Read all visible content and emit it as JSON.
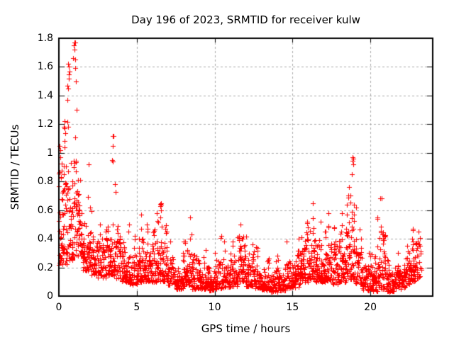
{
  "chart_data": {
    "type": "scatter",
    "title": "Day 196 of 2023, SRMTID for receiver kulw",
    "xlabel": "GPS time / hours",
    "ylabel": "SRMTID / TECUs",
    "xlim": [
      0,
      24
    ],
    "ylim": [
      0,
      1.8
    ],
    "xtick_values": [
      0,
      5,
      10,
      15,
      20
    ],
    "xtick_labels": [
      "0",
      "5",
      "10",
      "15",
      "20"
    ],
    "ytick_values": [
      0,
      0.2,
      0.4,
      0.6,
      0.8,
      1,
      1.2,
      1.4,
      1.6,
      1.8
    ],
    "ytick_labels": [
      "0",
      "0.2",
      "0.4",
      "0.6",
      "0.8",
      "1",
      "1.2",
      "1.4",
      "1.6",
      "1.8"
    ],
    "grid": {
      "style": "dashed",
      "color": "#aaaaaa",
      "on": true
    },
    "marker": {
      "shape": "plus",
      "color": "#ff0000",
      "size": 7
    },
    "axis_color": "#000000",
    "background": "#ffffff",
    "legend": "none",
    "series": [
      {
        "name": "SRMTID",
        "bins_format": [
          "hour_start",
          "y_min",
          "y_typical_max",
          "y_spike_max",
          "n_points",
          "spike_hour"
        ],
        "bins": [
          [
            0.0,
            0.22,
            1.05,
            1.22,
            70,
            0.35
          ],
          [
            0.5,
            0.25,
            1.0,
            1.62,
            65,
            0.62
          ],
          [
            1.0,
            0.28,
            0.95,
            1.77,
            60,
            1.03
          ],
          [
            1.5,
            0.18,
            0.62,
            0.92,
            55,
            1.9
          ],
          [
            2.0,
            0.15,
            0.5,
            0.62,
            50,
            null
          ],
          [
            2.5,
            0.13,
            0.42,
            0.5,
            45,
            null
          ],
          [
            3.0,
            0.15,
            0.55,
            1.12,
            55,
            3.45
          ],
          [
            3.5,
            0.12,
            0.5,
            0.78,
            55,
            3.6
          ],
          [
            4.0,
            0.1,
            0.4,
            0.5,
            55,
            null
          ],
          [
            4.5,
            0.08,
            0.33,
            0.42,
            50,
            null
          ],
          [
            5.0,
            0.1,
            0.45,
            0.57,
            55,
            5.3
          ],
          [
            5.5,
            0.1,
            0.42,
            0.5,
            55,
            null
          ],
          [
            6.0,
            0.1,
            0.48,
            0.58,
            55,
            null
          ],
          [
            6.5,
            0.1,
            0.52,
            0.65,
            55,
            6.55
          ],
          [
            7.0,
            0.08,
            0.3,
            0.38,
            50,
            null
          ],
          [
            7.5,
            0.05,
            0.25,
            0.3,
            50,
            null
          ],
          [
            8.0,
            0.07,
            0.4,
            0.55,
            55,
            8.4
          ],
          [
            8.5,
            0.05,
            0.3,
            0.43,
            50,
            8.55
          ],
          [
            9.0,
            0.05,
            0.28,
            0.32,
            50,
            null
          ],
          [
            9.5,
            0.04,
            0.22,
            0.3,
            50,
            null
          ],
          [
            10.0,
            0.05,
            0.3,
            0.42,
            50,
            10.4
          ],
          [
            10.5,
            0.06,
            0.3,
            0.38,
            50,
            null
          ],
          [
            11.0,
            0.07,
            0.33,
            0.38,
            50,
            null
          ],
          [
            11.5,
            0.1,
            0.42,
            0.5,
            55,
            11.7
          ],
          [
            12.0,
            0.07,
            0.3,
            0.36,
            50,
            null
          ],
          [
            12.5,
            0.05,
            0.28,
            0.34,
            50,
            12.7
          ],
          [
            13.0,
            0.04,
            0.2,
            0.26,
            50,
            null
          ],
          [
            13.5,
            0.03,
            0.18,
            0.24,
            50,
            null
          ],
          [
            14.0,
            0.04,
            0.2,
            0.28,
            50,
            null
          ],
          [
            14.5,
            0.05,
            0.28,
            0.38,
            50,
            14.6
          ],
          [
            15.0,
            0.06,
            0.3,
            0.4,
            55,
            15.4
          ],
          [
            15.5,
            0.1,
            0.45,
            0.52,
            55,
            null
          ],
          [
            16.0,
            0.12,
            0.55,
            0.65,
            55,
            16.3
          ],
          [
            16.5,
            0.1,
            0.45,
            0.52,
            55,
            null
          ],
          [
            17.0,
            0.1,
            0.48,
            0.58,
            55,
            17.3
          ],
          [
            17.5,
            0.08,
            0.4,
            0.48,
            50,
            null
          ],
          [
            18.0,
            0.1,
            0.48,
            0.58,
            55,
            18.2
          ],
          [
            18.5,
            0.12,
            0.8,
            0.97,
            60,
            18.85
          ],
          [
            19.0,
            0.08,
            0.5,
            0.62,
            50,
            19.05
          ],
          [
            19.5,
            0.04,
            0.22,
            0.3,
            50,
            null
          ],
          [
            20.0,
            0.03,
            0.3,
            0.55,
            50,
            20.45
          ],
          [
            20.5,
            0.05,
            0.45,
            0.68,
            55,
            20.65
          ],
          [
            21.0,
            0.03,
            0.18,
            0.25,
            50,
            null
          ],
          [
            21.5,
            0.05,
            0.22,
            0.3,
            50,
            null
          ],
          [
            22.0,
            0.06,
            0.28,
            0.35,
            50,
            null
          ],
          [
            22.5,
            0.1,
            0.42,
            0.47,
            55,
            22.7
          ],
          [
            23.0,
            0.12,
            0.4,
            0.45,
            20,
            null
          ]
        ],
        "extra_points": [
          [
            0.05,
            1.05
          ],
          [
            0.08,
            1.02
          ],
          [
            0.3,
            1.18
          ],
          [
            0.35,
            1.22
          ],
          [
            0.38,
            1.17
          ],
          [
            0.55,
            1.47
          ],
          [
            0.57,
            1.45
          ],
          [
            0.62,
            1.6
          ],
          [
            0.66,
            1.55
          ],
          [
            0.7,
            1.57
          ],
          [
            0.93,
            1.66
          ],
          [
            0.97,
            1.75
          ],
          [
            1.0,
            1.77
          ],
          [
            1.02,
            1.72
          ],
          [
            1.05,
            1.65
          ],
          [
            1.08,
            1.5
          ],
          [
            1.12,
            1.3
          ],
          [
            3.43,
            0.95
          ],
          [
            3.45,
            1.12
          ],
          [
            3.47,
            1.05
          ],
          [
            6.55,
            0.64
          ],
          [
            16.3,
            0.65
          ],
          [
            18.82,
            0.85
          ],
          [
            18.85,
            0.97
          ],
          [
            18.88,
            0.92
          ],
          [
            20.65,
            0.68
          ]
        ]
      }
    ]
  }
}
